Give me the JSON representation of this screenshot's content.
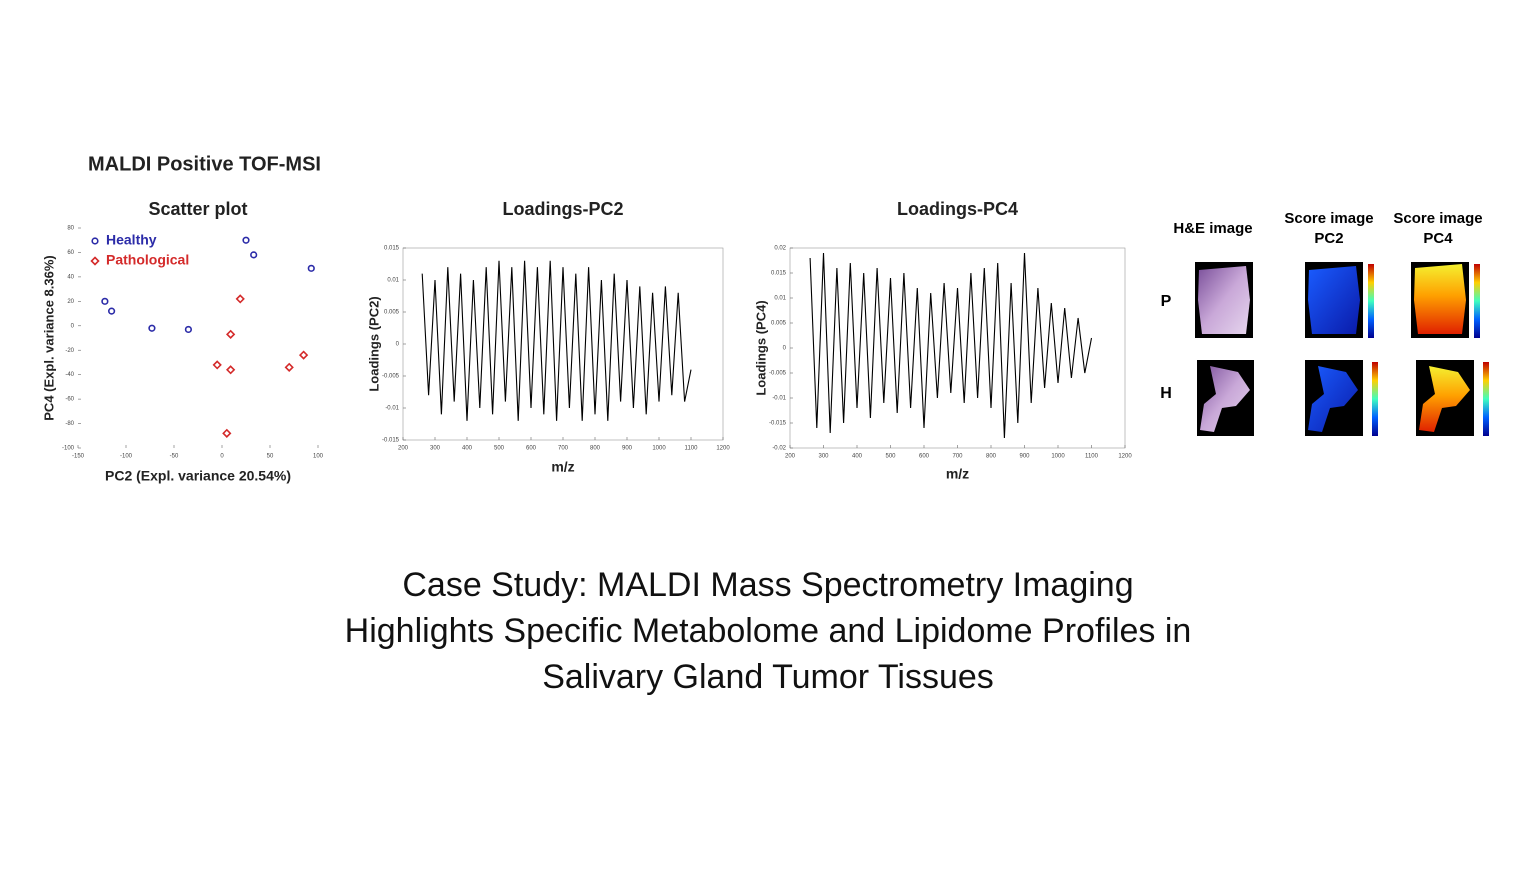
{
  "heading": "MALDI Positive TOF-MSI",
  "chart_data": [
    {
      "type": "scatter",
      "title": "Scatter plot",
      "x_label": "PC2 (Expl. variance 20.54%)",
      "y_label": "PC4 (Expl. variance 8.36%)",
      "xlim": [
        -150,
        100
      ],
      "xticks": [
        -150,
        -100,
        -50,
        0,
        50,
        100
      ],
      "ylim": [
        -100,
        80
      ],
      "yticks": [
        -100,
        -80,
        -60,
        -40,
        -20,
        0,
        20,
        40,
        60,
        80
      ],
      "legend": "upper left",
      "series": [
        {
          "name": "Healthy",
          "color": "#2b2ba8",
          "marker": "circle",
          "x": [
            -122,
            -115,
            -73,
            -35,
            25,
            33,
            93
          ],
          "values": [
            20,
            12,
            -2,
            -3,
            70,
            58,
            47
          ]
        },
        {
          "name": "Pathological",
          "color": "#d42a2a",
          "marker": "diamond",
          "x": [
            19,
            9,
            -5,
            9,
            70,
            85,
            5
          ],
          "values": [
            22,
            -7,
            -32,
            -36,
            -34,
            -24,
            -88
          ]
        }
      ]
    },
    {
      "type": "line",
      "title": "Loadings-PC2",
      "x_label": "m/z",
      "y_label": "Loadings (PC2)",
      "xlim": [
        200,
        1200
      ],
      "xticks": [
        200,
        300,
        400,
        500,
        600,
        700,
        800,
        900,
        1000,
        1100,
        1200
      ],
      "ylim": [
        -0.015,
        0.015
      ],
      "yticks": [
        -0.015,
        -0.01,
        -0.005,
        0,
        0.005,
        0.01,
        0.015
      ],
      "x": [
        260,
        280,
        300,
        320,
        340,
        360,
        380,
        400,
        420,
        440,
        460,
        480,
        500,
        520,
        540,
        560,
        580,
        600,
        620,
        640,
        660,
        680,
        700,
        720,
        740,
        760,
        780,
        800,
        820,
        840,
        860,
        880,
        900,
        920,
        940,
        960,
        980,
        1000,
        1020,
        1040,
        1060,
        1080,
        1100
      ],
      "series": [
        {
          "color": "#000000",
          "values": [
            0.011,
            -0.008,
            0.01,
            -0.011,
            0.012,
            -0.009,
            0.011,
            -0.012,
            0.01,
            -0.01,
            0.012,
            -0.011,
            0.013,
            -0.009,
            0.012,
            -0.012,
            0.013,
            -0.01,
            0.012,
            -0.011,
            0.013,
            -0.012,
            0.012,
            -0.01,
            0.011,
            -0.012,
            0.012,
            -0.011,
            0.01,
            -0.012,
            0.011,
            -0.009,
            0.01,
            -0.01,
            0.009,
            -0.011,
            0.008,
            -0.009,
            0.009,
            -0.008,
            0.008,
            -0.009,
            -0.004
          ]
        }
      ]
    },
    {
      "type": "line",
      "title": "Loadings-PC4",
      "x_label": "m/z",
      "y_label": "Loadings (PC4)",
      "xlim": [
        200,
        1200
      ],
      "xticks": [
        200,
        300,
        400,
        500,
        600,
        700,
        800,
        900,
        1000,
        1100,
        1200
      ],
      "ylim": [
        -0.02,
        0.02
      ],
      "yticks": [
        -0.02,
        -0.015,
        -0.01,
        -0.005,
        0,
        0.005,
        0.01,
        0.015,
        0.02
      ],
      "x": [
        260,
        280,
        300,
        320,
        340,
        360,
        380,
        400,
        420,
        440,
        460,
        480,
        500,
        520,
        540,
        560,
        580,
        600,
        620,
        640,
        660,
        680,
        700,
        720,
        740,
        760,
        780,
        800,
        820,
        840,
        860,
        880,
        900,
        920,
        940,
        960,
        980,
        1000,
        1020,
        1040,
        1060,
        1080,
        1100
      ],
      "series": [
        {
          "color": "#000000",
          "values": [
            0.018,
            -0.016,
            0.019,
            -0.017,
            0.016,
            -0.015,
            0.017,
            -0.012,
            0.015,
            -0.014,
            0.016,
            -0.011,
            0.014,
            -0.013,
            0.015,
            -0.012,
            0.012,
            -0.016,
            0.011,
            -0.01,
            0.013,
            -0.009,
            0.012,
            -0.011,
            0.015,
            -0.01,
            0.016,
            -0.012,
            0.017,
            -0.018,
            0.013,
            -0.015,
            0.019,
            -0.011,
            0.012,
            -0.008,
            0.009,
            -0.007,
            0.008,
            -0.006,
            0.006,
            -0.005,
            0.002
          ]
        }
      ]
    }
  ],
  "panels": {
    "headers": [
      "H&E image",
      "Score image",
      "PC2",
      "Score image",
      "PC4"
    ],
    "rows": [
      "P",
      "H"
    ]
  },
  "caption": [
    "Case Study: MALDI Mass Spectrometry Imaging",
    "Highlights Specific Metabolome and Lipidome Profiles in",
    "Salivary Gland Tumor Tissues"
  ]
}
